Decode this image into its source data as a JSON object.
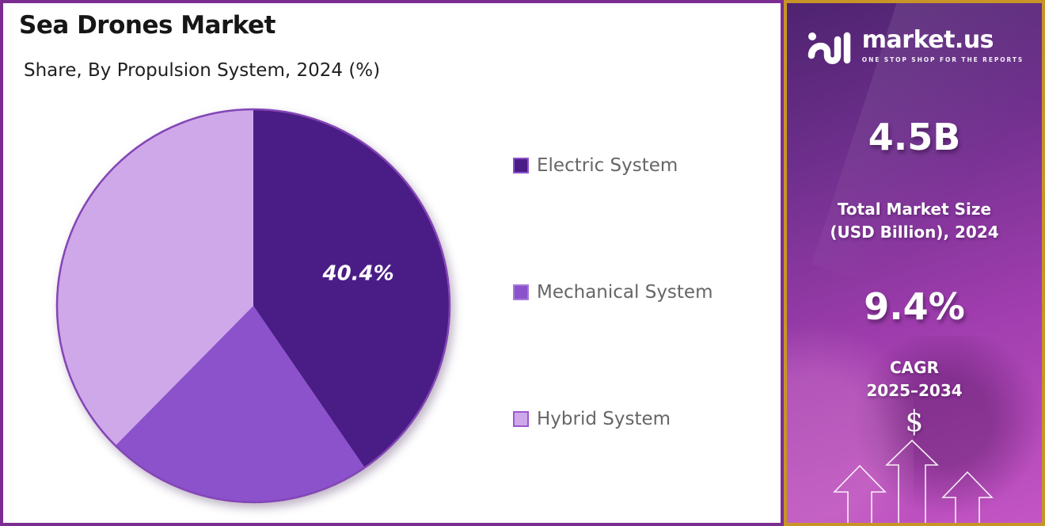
{
  "header": {
    "title": "Sea Drones Market",
    "subtitle": "Share, By Propulsion System, 2024 (%)"
  },
  "chart_data": {
    "type": "pie",
    "title": "Sea Drones Market",
    "subtitle": "Share, By Propulsion System, 2024 (%)",
    "categories": [
      "Electric System",
      "Mechanical System",
      "Hybrid System"
    ],
    "values": [
      40.4,
      22.0,
      37.6
    ],
    "labels_shown": [
      "40.4%",
      "",
      ""
    ],
    "colors": [
      "#4A1D86",
      "#8B52CC",
      "#CFA8EA"
    ],
    "swatch_border_colors": [
      "#8B52CC",
      "#A678DC",
      "#9B59D0"
    ],
    "start_angle_deg": 0,
    "direction": "clockwise",
    "legend_position": "right",
    "label_color": "#ffffff",
    "outline_color": "#8445B5"
  },
  "sidebar": {
    "brand_name": "market.us",
    "brand_tagline": "ONE STOP SHOP FOR THE REPORTS",
    "market_size_value": "4.5B",
    "market_size_label": "Total Market Size\n(USD Billion), 2024",
    "cagr_value": "9.4%",
    "cagr_label": "CAGR\n2025–2034",
    "dollar_symbol": "$"
  },
  "colors": {
    "chart_border": "#7B2D91",
    "sidebar_border": "#C89427",
    "sidebar_gradient_top": "#4E2370",
    "sidebar_gradient_bottom": "#C455C4",
    "legend_text": "#666666",
    "title_text": "#161616"
  }
}
